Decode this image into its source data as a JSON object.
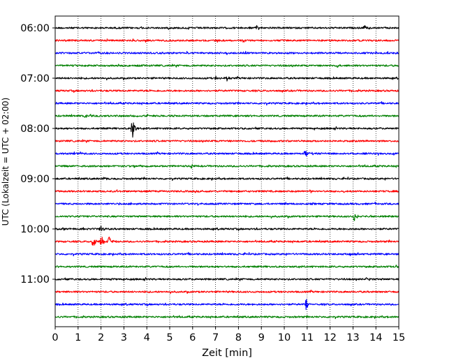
{
  "chart_data": {
    "type": "line",
    "title": "",
    "xlabel": "Zeit  [min]",
    "ylabel": "UTC (Lokalzeit = UTC + 02:00)",
    "xlim": [
      0,
      15
    ],
    "x_ticks": [
      0,
      1,
      2,
      3,
      4,
      5,
      6,
      7,
      8,
      9,
      10,
      11,
      12,
      13,
      14,
      15
    ],
    "grid": "vertical dotted",
    "y_ticks": [
      "06:00",
      "07:00",
      "08:00",
      "09:00",
      "10:00",
      "11:00"
    ],
    "trace_interval_min": 15,
    "trace_color_cycle": [
      "#000000",
      "#ff0000",
      "#0000ff",
      "#008000"
    ],
    "traces": [
      {
        "start": "06:00",
        "color": "#000000",
        "events": [
          {
            "t": 13.5,
            "amp": 0.55
          },
          {
            "t": 8.8,
            "amp": 0.3
          }
        ]
      },
      {
        "start": "06:15",
        "color": "#ff0000",
        "events": []
      },
      {
        "start": "06:30",
        "color": "#0000ff",
        "events": []
      },
      {
        "start": "06:45",
        "color": "#008000",
        "events": [
          {
            "t": 12.3,
            "amp": 0.3
          }
        ]
      },
      {
        "start": "07:00",
        "color": "#000000",
        "events": [
          {
            "t": 7.5,
            "amp": 0.35
          },
          {
            "t": 7.0,
            "amp": 0.3
          }
        ]
      },
      {
        "start": "07:15",
        "color": "#ff0000",
        "events": []
      },
      {
        "start": "07:30",
        "color": "#0000ff",
        "events": []
      },
      {
        "start": "07:45",
        "color": "#008000",
        "events": [
          {
            "t": 1.3,
            "amp": 0.3
          }
        ]
      },
      {
        "start": "08:00",
        "color": "#000000",
        "events": [
          {
            "t": 3.35,
            "amp": 1.6
          }
        ]
      },
      {
        "start": "08:15",
        "color": "#ff0000",
        "events": []
      },
      {
        "start": "08:30",
        "color": "#0000ff",
        "events": [
          {
            "t": 10.9,
            "amp": 0.6
          },
          {
            "t": 1.1,
            "amp": 0.25
          }
        ]
      },
      {
        "start": "08:45",
        "color": "#008000",
        "events": [
          {
            "t": 5.95,
            "amp": 0.35
          }
        ]
      },
      {
        "start": "09:00",
        "color": "#000000",
        "events": [
          {
            "t": 2.1,
            "amp": 0.3
          }
        ]
      },
      {
        "start": "09:15",
        "color": "#ff0000",
        "events": [
          {
            "t": 11.1,
            "amp": 0.3
          },
          {
            "t": 12.6,
            "amp": 0.25
          }
        ]
      },
      {
        "start": "09:30",
        "color": "#0000ff",
        "events": []
      },
      {
        "start": "09:45",
        "color": "#008000",
        "events": [
          {
            "t": 13.05,
            "amp": 0.6
          }
        ]
      },
      {
        "start": "10:00",
        "color": "#000000",
        "events": [
          {
            "t": 1.95,
            "amp": 0.55
          }
        ]
      },
      {
        "start": "10:15",
        "color": "#ff0000",
        "events": [
          {
            "t": 1.65,
            "amp": 1.0
          },
          {
            "t": 2.0,
            "amp": 0.75
          },
          {
            "t": 2.35,
            "amp": 0.65
          }
        ]
      },
      {
        "start": "10:30",
        "color": "#0000ff",
        "events": [
          {
            "t": 12.9,
            "amp": 0.3
          }
        ]
      },
      {
        "start": "10:45",
        "color": "#008000",
        "events": [
          {
            "t": 14.9,
            "amp": 0.25
          }
        ]
      },
      {
        "start": "11:00",
        "color": "#000000",
        "events": [
          {
            "t": 13.6,
            "amp": 0.25
          }
        ]
      },
      {
        "start": "11:15",
        "color": "#ff0000",
        "events": []
      },
      {
        "start": "11:30",
        "color": "#0000ff",
        "events": [
          {
            "t": 10.95,
            "amp": 0.8
          }
        ]
      },
      {
        "start": "11:45",
        "color": "#008000",
        "events": []
      }
    ]
  }
}
